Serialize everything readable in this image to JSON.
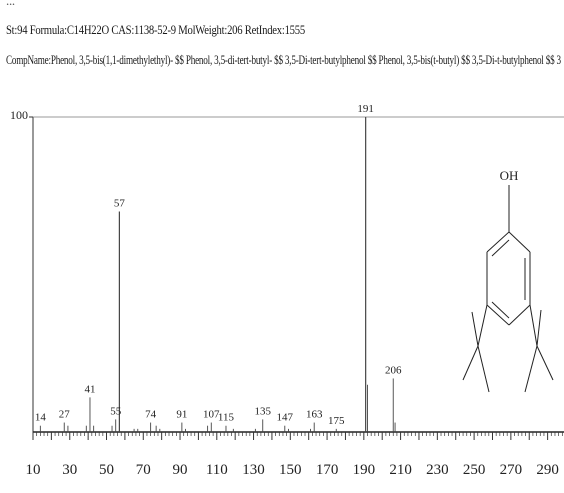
{
  "header": {
    "top_fragment": "...",
    "line1": "St:94 Formula:C14H22O CAS:1138-52-9 MolWeight:206 RetIndex:1555",
    "line2": "CompName:Phenol, 3,5-bis(1,1-dimethylethyl)- $$ Phenol, 3,5-di-tert-butyl- $$ 3,5-Di-tert-butylphenol $$ Phenol, 3,5-bis(t-butyl) $$ 3,5-Di-t-butylphenol $$ 3"
  },
  "structure": {
    "oh_label": "OH"
  },
  "chart_data": {
    "type": "bar",
    "title": "",
    "xlabel": "",
    "ylabel": "",
    "xlim": [
      10,
      300
    ],
    "ylim": [
      0,
      100
    ],
    "y_tick_labels": [
      "100"
    ],
    "x_tick_labels": [
      "10",
      "30",
      "50",
      "70",
      "90",
      "110",
      "130",
      "150",
      "170",
      "190",
      "210",
      "230",
      "250",
      "270",
      "290"
    ],
    "peaks": [
      {
        "mz": 14,
        "intensity": 2,
        "label": "14"
      },
      {
        "mz": 27,
        "intensity": 3,
        "label": "27"
      },
      {
        "mz": 29,
        "intensity": 2,
        "label": ""
      },
      {
        "mz": 39,
        "intensity": 2,
        "label": ""
      },
      {
        "mz": 41,
        "intensity": 11,
        "label": "41"
      },
      {
        "mz": 43,
        "intensity": 2,
        "label": ""
      },
      {
        "mz": 53,
        "intensity": 2,
        "label": ""
      },
      {
        "mz": 55,
        "intensity": 4,
        "label": "55"
      },
      {
        "mz": 57,
        "intensity": 70,
        "label": "57"
      },
      {
        "mz": 65,
        "intensity": 1,
        "label": ""
      },
      {
        "mz": 67,
        "intensity": 1,
        "label": ""
      },
      {
        "mz": 74,
        "intensity": 3,
        "label": "74"
      },
      {
        "mz": 77,
        "intensity": 2,
        "label": ""
      },
      {
        "mz": 79,
        "intensity": 1,
        "label": ""
      },
      {
        "mz": 91,
        "intensity": 3,
        "label": "91"
      },
      {
        "mz": 93,
        "intensity": 1,
        "label": ""
      },
      {
        "mz": 105,
        "intensity": 2,
        "label": ""
      },
      {
        "mz": 107,
        "intensity": 3,
        "label": "107"
      },
      {
        "mz": 115,
        "intensity": 2,
        "label": "115"
      },
      {
        "mz": 119,
        "intensity": 1,
        "label": ""
      },
      {
        "mz": 131,
        "intensity": 1,
        "label": ""
      },
      {
        "mz": 135,
        "intensity": 4,
        "label": "135"
      },
      {
        "mz": 147,
        "intensity": 2,
        "label": "147"
      },
      {
        "mz": 149,
        "intensity": 1,
        "label": ""
      },
      {
        "mz": 161,
        "intensity": 1,
        "label": ""
      },
      {
        "mz": 163,
        "intensity": 3,
        "label": "163"
      },
      {
        "mz": 175,
        "intensity": 1,
        "label": "175"
      },
      {
        "mz": 191,
        "intensity": 100,
        "label": "191"
      },
      {
        "mz": 192,
        "intensity": 15,
        "label": ""
      },
      {
        "mz": 206,
        "intensity": 17,
        "label": "206"
      },
      {
        "mz": 207,
        "intensity": 3,
        "label": ""
      }
    ]
  }
}
